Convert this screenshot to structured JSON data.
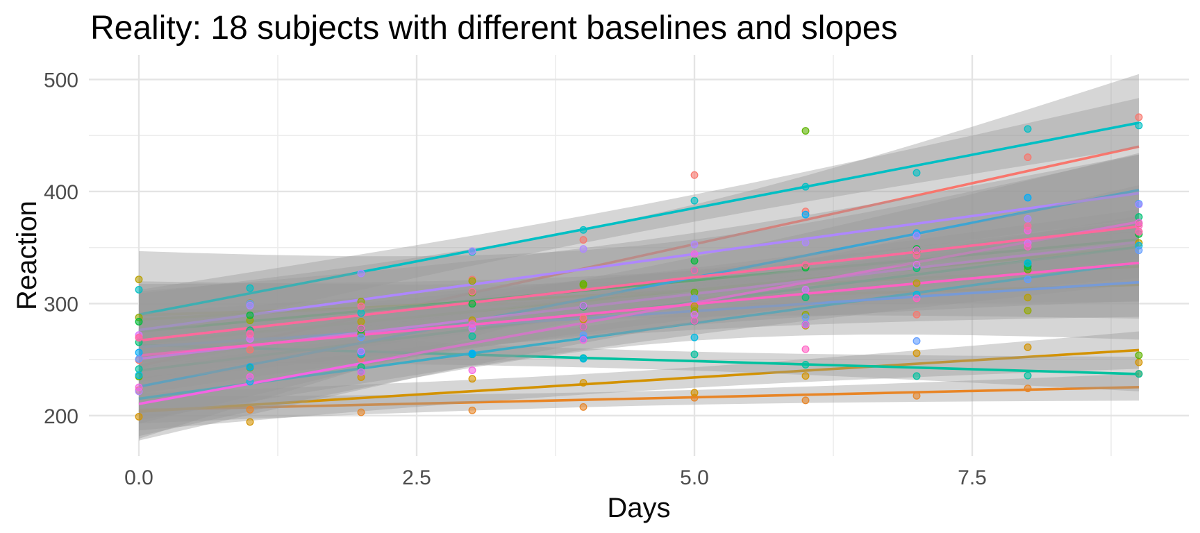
{
  "title": "Reality: 18 subjects with different baselines and slopes",
  "colors": {
    "background": "#FFFFFF",
    "grid_major": "#E4E4E4",
    "grid_minor": "#ECECEC",
    "tick_text": "#4D4D4D",
    "axis_title_text": "#0A0A0A",
    "plot_title_text": "#000000",
    "ci_band": "#999999"
  },
  "chart_data": {
    "type": "scatter",
    "title": "Reality: 18 subjects with different baselines and slopes",
    "xlabel": "Days",
    "ylabel": "Reaction",
    "legend": "none",
    "grid": "major+minor",
    "xlim": [
      -0.45,
      9.45
    ],
    "ylim": [
      164,
      522
    ],
    "x_ticks": {
      "major": [
        0,
        2.5,
        5,
        7.5
      ],
      "labels": [
        "0.0",
        "2.5",
        "5.0",
        "7.5"
      ],
      "minor": [
        1.25,
        3.75,
        6.25,
        8.75
      ]
    },
    "y_ticks": {
      "major": [
        200,
        300,
        400,
        500
      ],
      "labels": [
        "200",
        "300",
        "400",
        "500"
      ],
      "minor": [
        250,
        350,
        450
      ]
    },
    "x": [
      0,
      1,
      2,
      3,
      4,
      5,
      6,
      7,
      8,
      9
    ],
    "smoother": {
      "method": "lm",
      "se": true,
      "level": 0.95,
      "t_crit": 2.306,
      "band_color": "#999999",
      "band_alpha": 0.4,
      "line_width": 3.6,
      "point_radius": 4.8,
      "point_alpha": 0.6
    },
    "series": [
      {
        "subject": "308",
        "color": "#F8766D",
        "reaction": [
          249.56,
          258.7047,
          250.8006,
          321.4398,
          356.8519,
          414.6901,
          382.2038,
          290.1486,
          430.5853,
          466.3535
        ]
      },
      {
        "subject": "309",
        "color": "#E88526",
        "reaction": [
          222.7339,
          205.2658,
          202.9778,
          204.707,
          207.7161,
          215.9618,
          213.6303,
          217.7272,
          224.2957,
          237.3142
        ]
      },
      {
        "subject": "310",
        "color": "#D39200",
        "reaction": [
          199.0539,
          194.3322,
          234.32,
          232.8416,
          229.3074,
          220.4579,
          235.4208,
          255.7511,
          261.0125,
          247.5153
        ]
      },
      {
        "subject": "330",
        "color": "#B79F00",
        "reaction": [
          321.5426,
          300.4002,
          283.8565,
          285.133,
          285.7973,
          297.5855,
          280.2396,
          318.2613,
          305.3495,
          354.0487
        ]
      },
      {
        "subject": "331",
        "color": "#93AA00",
        "reaction": [
          287.6079,
          285.0,
          301.8206,
          320.1153,
          316.2773,
          293.3187,
          290.075,
          334.8177,
          293.7469,
          371.5811
        ]
      },
      {
        "subject": "332",
        "color": "#5EB300",
        "reaction": [
          234.8606,
          242.8118,
          272.9613,
          309.7688,
          317.4629,
          309.9976,
          454.1619,
          346.8311,
          330.3003,
          253.8644
        ]
      },
      {
        "subject": "333",
        "color": "#00BA38",
        "reaction": [
          283.8424,
          289.555,
          276.7693,
          299.8097,
          297.171,
          338.1665,
          332.0265,
          348.8399,
          333.36,
          362.0428
        ]
      },
      {
        "subject": "334",
        "color": "#00BF74",
        "reaction": [
          265.4731,
          276.2012,
          243.3647,
          254.6723,
          279.0244,
          284.1912,
          305.5248,
          331.5229,
          335.7469,
          377.299
        ]
      },
      {
        "subject": "335",
        "color": "#00C19F",
        "reaction": [
          241.6083,
          273.9472,
          254.4907,
          270.8021,
          251.4519,
          254.6362,
          245.4523,
          235.311,
          235.7541,
          237.2466
        ]
      },
      {
        "subject": "337",
        "color": "#00BFC4",
        "reaction": [
          312.3666,
          313.8058,
          291.6112,
          346.1222,
          365.7324,
          391.8385,
          404.2601,
          416.6923,
          455.8643,
          458.9167
        ]
      },
      {
        "subject": "349",
        "color": "#00B9E3",
        "reaction": [
          236.1032,
          230.3167,
          238.9256,
          254.922,
          250.7103,
          269.7744,
          281.5648,
          308.102,
          336.2806,
          351.6451
        ]
      },
      {
        "subject": "350",
        "color": "#00ADFA",
        "reaction": [
          256.2968,
          243.4543,
          256.2046,
          255.5271,
          268.9165,
          329.7247,
          379.4445,
          362.9184,
          394.4872,
          389.0527
        ]
      },
      {
        "subject": "351",
        "color": "#619CFF",
        "reaction": [
          250.5265,
          300.0576,
          269.8939,
          280.5891,
          271.8274,
          304.6336,
          287.7466,
          266.5955,
          321.5418,
          347.5655
        ]
      },
      {
        "subject": "352",
        "color": "#AE87FF",
        "reaction": [
          221.6771,
          298.1939,
          326.8785,
          346.8555,
          348.7402,
          352.8287,
          354.4266,
          360.4326,
          375.6406,
          388.5417
        ]
      },
      {
        "subject": "369",
        "color": "#DB72FB",
        "reaction": [
          271.9235,
          268.4369,
          257.2424,
          277.7184,
          297.981,
          290.1,
          312.45,
          334.82,
          353.87,
          364.12
        ]
      },
      {
        "subject": "370",
        "color": "#F564E3",
        "reaction": [
          225.264,
          234.5235,
          238.9008,
          240.473,
          267.5373,
          344.1937,
          281.1481,
          347.5855,
          365.163,
          372.2288
        ]
      },
      {
        "subject": "371",
        "color": "#FF61C3",
        "reaction": [
          269.8804,
          272.4428,
          277.8989,
          281.7895,
          279.1705,
          284.512,
          259.2658,
          304.6306,
          350.7807,
          369.4692
        ]
      },
      {
        "subject": "372",
        "color": "#FF699C",
        "reaction": [
          269.4117,
          273.474,
          297.5968,
          310.6316,
          287.1726,
          329.6076,
          334.4818,
          343.2199,
          369.1417,
          364.1236
        ]
      }
    ]
  }
}
